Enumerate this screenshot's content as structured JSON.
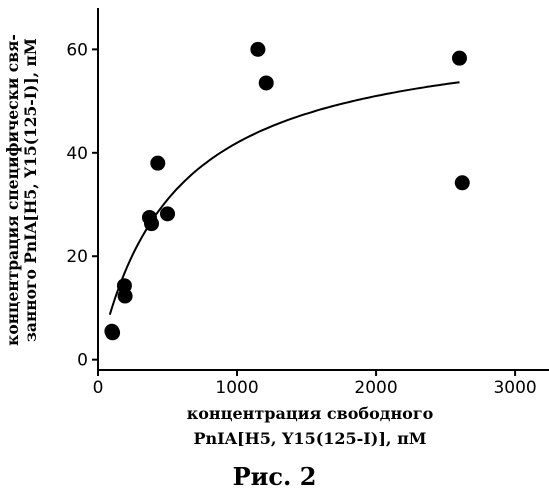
{
  "chart_data": {
    "type": "scatter",
    "xlabel_line1": "концентрация свободного",
    "xlabel_line2": "PnIA[H5, Y15(125-I)], пМ",
    "ylabel_line1": "концентрация специфически свя-",
    "ylabel_line2": "занного PnIA[H5, Y15(125-I)], пМ",
    "xlim": [
      0,
      3100
    ],
    "ylim": [
      -2,
      68
    ],
    "xticks": [
      0,
      1000,
      2000,
      3000
    ],
    "yticks": [
      0,
      20,
      40,
      60
    ],
    "points": [
      {
        "x": 100,
        "y": 5.5
      },
      {
        "x": 105,
        "y": 5.2
      },
      {
        "x": 190,
        "y": 14.3
      },
      {
        "x": 195,
        "y": 12.3
      },
      {
        "x": 370,
        "y": 27.5
      },
      {
        "x": 385,
        "y": 26.3
      },
      {
        "x": 430,
        "y": 38.0
      },
      {
        "x": 500,
        "y": 28.2
      },
      {
        "x": 1150,
        "y": 60.0
      },
      {
        "x": 1210,
        "y": 53.5
      },
      {
        "x": 2600,
        "y": 58.3
      },
      {
        "x": 2620,
        "y": 34.2
      }
    ],
    "fit_curve": {
      "Bmax": 65,
      "Kd": 550,
      "x_from": 85,
      "x_to": 2600
    }
  },
  "caption": "Рис. 2"
}
